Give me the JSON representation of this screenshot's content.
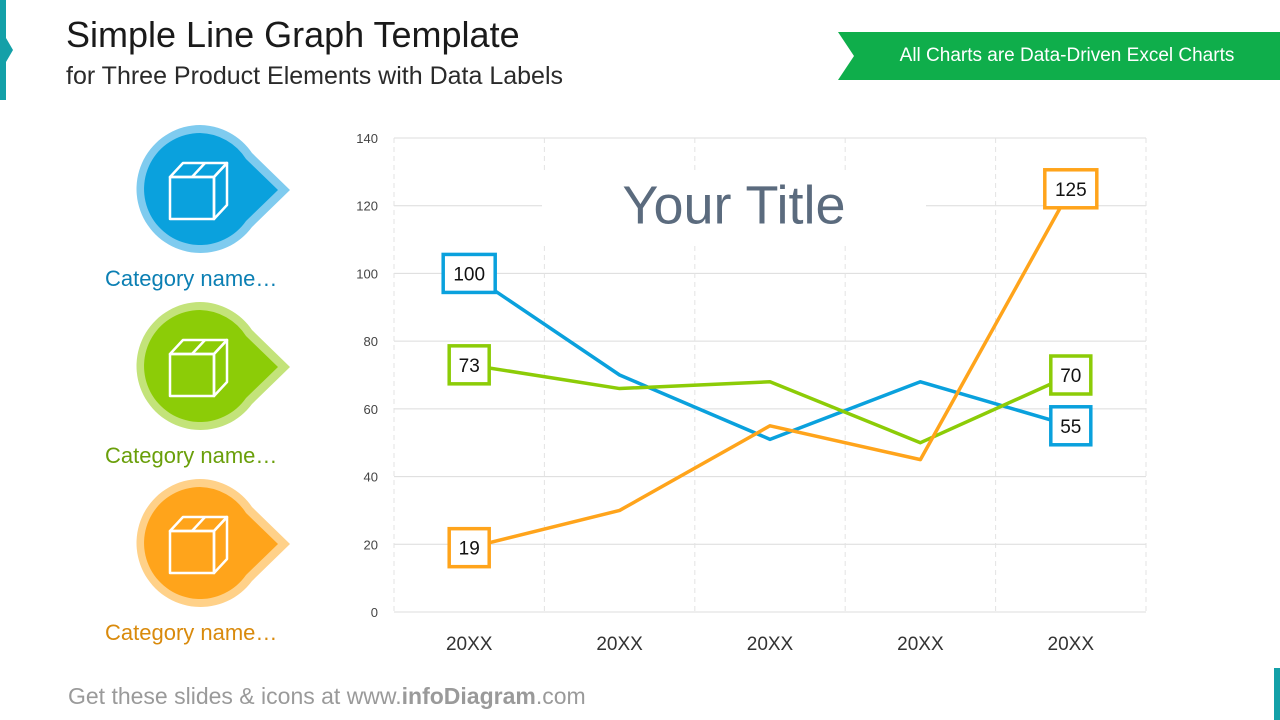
{
  "header": {
    "title": "Simple Line Graph Template",
    "subtitle": "for Three Product Elements with Data Labels",
    "ribbon_label": "All Charts are Data-Driven Excel Charts"
  },
  "categories": [
    {
      "label": "Category name…",
      "color": "#0aa1dd",
      "light": "#7fcbef",
      "text_color": "#0b7fb3",
      "icon": "box-icon"
    },
    {
      "label": "Category name…",
      "color": "#8ccc07",
      "light": "#c3e37a",
      "text_color": "#6a9f0a",
      "icon": "box-icon"
    },
    {
      "label": "Category name…",
      "color": "#ffa41b",
      "light": "#ffd189",
      "text_color": "#d98a0c",
      "icon": "box-icon"
    }
  ],
  "footer": {
    "prefix": "Get these slides & icons at www.",
    "brand": "infoDiagram",
    "suffix": ".com"
  },
  "colors": {
    "ribbon": "#0fae4b",
    "ribbon_dark": "#077f32",
    "accent": "#14a0a8"
  },
  "chart_data": {
    "type": "line",
    "title": "Your Title",
    "categories": [
      "20XX",
      "20XX",
      "20XX",
      "20XX",
      "20XX"
    ],
    "ylim": [
      0,
      140
    ],
    "yticks": [
      0,
      20,
      40,
      60,
      80,
      100,
      120,
      140
    ],
    "grid": true,
    "series": [
      {
        "color": "#0aa1dd",
        "values": [
          100,
          70,
          51,
          68,
          55
        ],
        "labels": {
          "0": "100",
          "4": "55"
        }
      },
      {
        "color": "#8ccc07",
        "values": [
          73,
          66,
          68,
          50,
          70
        ],
        "labels": {
          "0": "73",
          "4": "70"
        }
      },
      {
        "color": "#ffa41b",
        "values": [
          19,
          30,
          55,
          45,
          125
        ],
        "labels": {
          "0": "19",
          "4": "125"
        }
      }
    ]
  }
}
